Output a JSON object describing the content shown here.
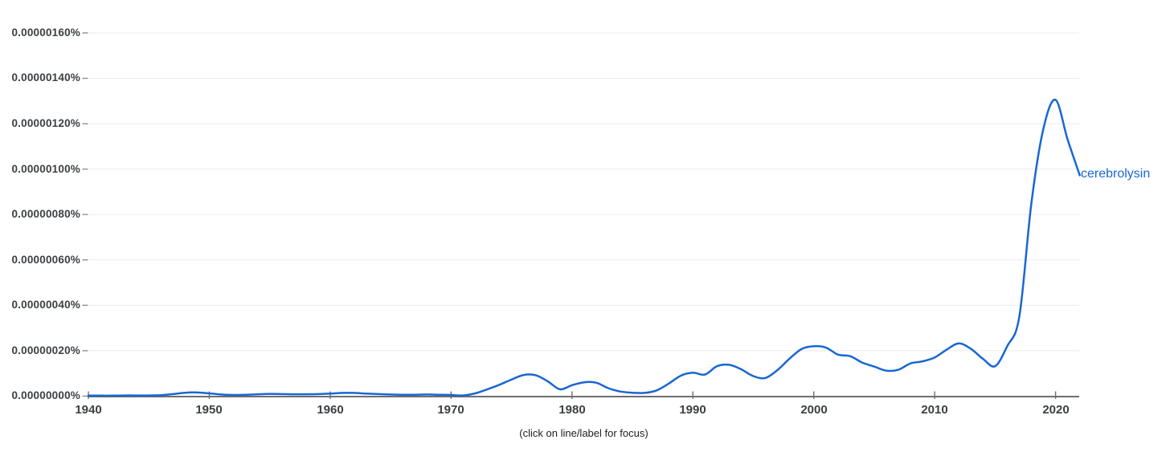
{
  "caption": "(click on line/label for focus)",
  "series_label": "cerebrolysin",
  "colors": {
    "line": "#1967d2",
    "series_label_text": "#1967d2",
    "gridline": "#ebebeb",
    "axis": "#6e6e6e",
    "y_tick_dash": "#8f8f8f",
    "axis_text": "#3c4043",
    "caption_text": "#202124",
    "background": "#ffffff"
  },
  "chart_data": {
    "type": "line",
    "title": "",
    "legend": "inline end-of-line label",
    "grid": "horizontal",
    "x_tick_labels": [
      "1940",
      "1950",
      "1960",
      "1970",
      "1980",
      "1990",
      "2000",
      "2010",
      "2020"
    ],
    "y_tick_labels": [
      "0.00000160%",
      "0.00000140%",
      "0.00000120%",
      "0.00000100%",
      "0.00000080%",
      "0.00000060%",
      "0.00000040%",
      "0.00000020%",
      "0.00000000%"
    ],
    "x_range": [
      1940,
      2022
    ],
    "y_unit": "percent of corpus; series values are in units of 1e-8 %",
    "ylim_percent_x1e8": [
      0,
      174
    ],
    "x": [
      1940,
      1941,
      1942,
      1943,
      1944,
      1945,
      1946,
      1947,
      1948,
      1949,
      1950,
      1951,
      1952,
      1953,
      1954,
      1955,
      1956,
      1957,
      1958,
      1959,
      1960,
      1961,
      1962,
      1963,
      1964,
      1965,
      1966,
      1967,
      1968,
      1969,
      1970,
      1971,
      1972,
      1973,
      1974,
      1975,
      1976,
      1977,
      1978,
      1979,
      1980,
      1981,
      1982,
      1983,
      1984,
      1985,
      1986,
      1987,
      1988,
      1989,
      1990,
      1991,
      1992,
      1993,
      1994,
      1995,
      1996,
      1997,
      1998,
      1999,
      2000,
      2001,
      2002,
      2003,
      2004,
      2005,
      2006,
      2007,
      2008,
      2009,
      2010,
      2011,
      2012,
      2013,
      2014,
      2015,
      2016,
      2017,
      2018,
      2019,
      2020,
      2021,
      2022
    ],
    "series": [
      {
        "name": "cerebrolysin",
        "color": "#1967d2",
        "values_percent_x1e8": [
          0.2,
          0.2,
          0.2,
          0.3,
          0.3,
          0.3,
          0.4,
          0.9,
          1.5,
          1.6,
          1.2,
          0.7,
          0.5,
          0.6,
          0.8,
          1.0,
          0.9,
          0.8,
          0.8,
          0.9,
          1.1,
          1.4,
          1.4,
          1.1,
          0.9,
          0.7,
          0.6,
          0.6,
          0.7,
          0.6,
          0.5,
          0.3,
          1.2,
          3.0,
          5.0,
          7.3,
          9.3,
          9.2,
          6.5,
          3.0,
          4.8,
          6.1,
          5.9,
          3.5,
          2.0,
          1.5,
          1.4,
          2.5,
          5.5,
          9.0,
          10.3,
          9.5,
          13.2,
          13.8,
          11.8,
          8.8,
          8.0,
          11.5,
          16.5,
          20.8,
          22.0,
          21.4,
          18.3,
          17.6,
          14.8,
          13.0,
          11.2,
          11.6,
          14.4,
          15.3,
          17.0,
          20.5,
          23.2,
          20.8,
          16.4,
          13.2,
          22.0,
          35.0,
          85.0,
          118.0,
          130.5,
          113.0,
          97.3
        ]
      }
    ]
  }
}
